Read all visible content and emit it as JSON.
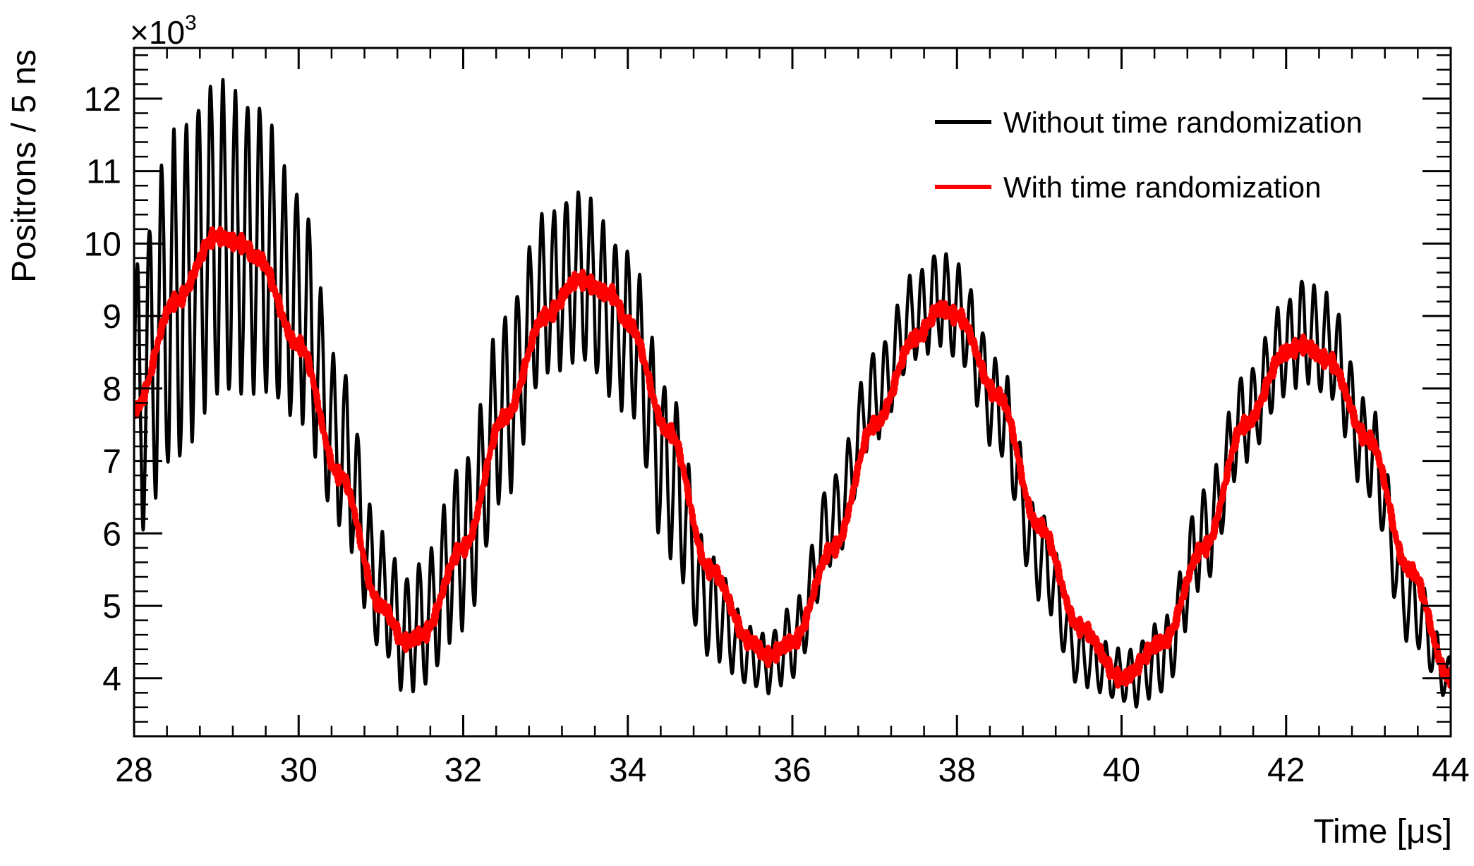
{
  "chart_data": {
    "type": "line",
    "title": "",
    "xlabel": "Time [μs]",
    "ylabel": "Positrons / 5 ns",
    "y_multiplier_label": "×10",
    "y_multiplier_exponent": "3",
    "xlim": [
      28,
      44
    ],
    "ylim": [
      3200,
      12700
    ],
    "x_ticks": [
      28,
      30,
      32,
      34,
      36,
      38,
      40,
      42,
      44
    ],
    "y_ticks": [
      4,
      5,
      6,
      7,
      8,
      9,
      10,
      11,
      12
    ],
    "y_tick_unit_multiplier": 1000,
    "grid": false,
    "legend_position": "top-right",
    "series": [
      {
        "name": "Without time randomization",
        "color": "#000000",
        "envelope_x": [
          28.0,
          28.5,
          29.0,
          29.5,
          30.0,
          30.5,
          31.0,
          31.3,
          31.5,
          32.0,
          32.5,
          33.0,
          33.4,
          34.0,
          34.5,
          35.0,
          35.5,
          35.7,
          36.0,
          36.5,
          37.0,
          37.5,
          37.8,
          38.0,
          38.5,
          39.0,
          39.5,
          40.0,
          40.1,
          40.5,
          41.0,
          41.5,
          42.0,
          42.2,
          42.5,
          43.0,
          43.5,
          44.0
        ],
        "envelope_upper": [
          9700,
          11500,
          12200,
          11900,
          10700,
          8300,
          6000,
          5400,
          5600,
          7000,
          9000,
          10400,
          10700,
          9900,
          8000,
          5700,
          4700,
          4600,
          5000,
          6800,
          8500,
          9600,
          9900,
          9700,
          8400,
          6300,
          4700,
          4400,
          4400,
          4800,
          6600,
          8200,
          9200,
          9500,
          9300,
          7800,
          5600,
          4300
        ],
        "envelope_lower": [
          6000,
          7000,
          7900,
          8000,
          7600,
          6100,
          4400,
          3800,
          3900,
          4700,
          6500,
          8200,
          8400,
          7700,
          5700,
          4300,
          3900,
          3800,
          4000,
          5600,
          7300,
          8400,
          8600,
          8400,
          7100,
          5100,
          3900,
          3700,
          3600,
          3800,
          5300,
          7000,
          7900,
          8100,
          7900,
          6500,
          4500,
          3700
        ],
        "fast_oscillation_period_us": 0.149
      },
      {
        "name": "With time randomization",
        "color": "#ff0000",
        "x": [
          28.0,
          28.5,
          29.0,
          29.3,
          29.5,
          30.0,
          30.5,
          31.0,
          31.3,
          31.5,
          32.0,
          32.5,
          33.0,
          33.4,
          33.8,
          34.0,
          34.5,
          35.0,
          35.5,
          35.7,
          36.0,
          36.5,
          37.0,
          37.5,
          37.8,
          38.0,
          38.5,
          39.0,
          39.5,
          40.0,
          40.5,
          41.0,
          41.5,
          42.0,
          42.2,
          42.5,
          43.0,
          43.5,
          44.0
        ],
        "y": [
          7700,
          9200,
          10100,
          10000,
          9800,
          8600,
          6800,
          5000,
          4500,
          4600,
          5800,
          7600,
          9000,
          9500,
          9300,
          8900,
          7400,
          5500,
          4500,
          4300,
          4500,
          5800,
          7500,
          8700,
          9100,
          9000,
          7900,
          6100,
          4700,
          4000,
          4500,
          5800,
          7500,
          8500,
          8600,
          8400,
          7300,
          5500,
          4000
        ]
      }
    ]
  }
}
